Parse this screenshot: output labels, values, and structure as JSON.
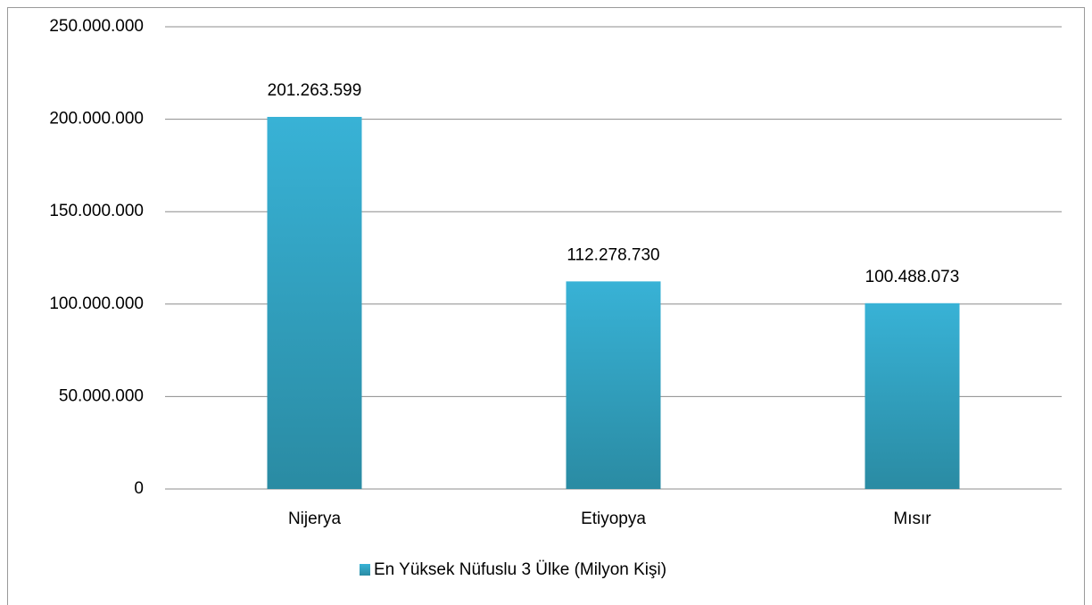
{
  "chart_data": {
    "type": "bar",
    "categories": [
      "Nijerya",
      "Etiyopya",
      "Mısır"
    ],
    "series": [
      {
        "name": "En Yüksek Nüfuslu 3 Ülke (Milyon Kişi)",
        "color": "#38b2d6",
        "values": [
          201263599,
          112278730,
          100488073
        ],
        "value_labels": [
          "201.263.599",
          "112.278.730",
          "100.488.073"
        ]
      }
    ],
    "ylim": [
      0,
      250000000
    ],
    "yticks": [
      0,
      {
        "value": 50000000,
        "label": "50.000.000"
      },
      {
        "value": 100000000,
        "label": "100.000.000"
      },
      {
        "value": 150000000,
        "label": "150.000.000"
      },
      {
        "value": 200000000,
        "label": "200.000.000"
      },
      {
        "value": 250000000,
        "label": "250.000.000"
      }
    ],
    "grid": true,
    "legend": "bottom"
  }
}
